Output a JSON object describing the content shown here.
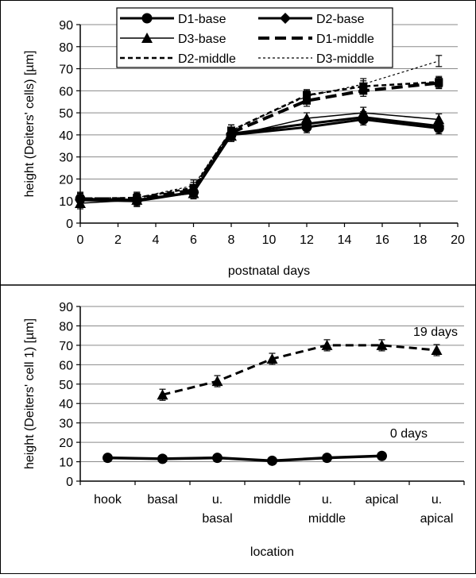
{
  "chart_data": [
    {
      "type": "line",
      "xlabel": "postnatal days",
      "ylabel": "height (Deiters' cells) [µm]",
      "xlim": [
        0,
        20
      ],
      "ylim": [
        0,
        90
      ],
      "xticks": [
        0,
        2,
        4,
        6,
        8,
        10,
        12,
        14,
        16,
        18,
        20
      ],
      "yticks": [
        0,
        10,
        20,
        30,
        40,
        50,
        60,
        70,
        80,
        90
      ],
      "grid": "horizontal",
      "legend": "top",
      "series": [
        {
          "name": "D1-base",
          "x": [
            0,
            3,
            6,
            8,
            12,
            15,
            19
          ],
          "y": [
            11,
            10.5,
            14,
            40,
            43.5,
            47,
            43
          ]
        },
        {
          "name": "D2-base",
          "x": [
            0,
            3,
            6,
            8,
            12,
            15,
            19
          ],
          "y": [
            10.5,
            10,
            14,
            40.5,
            45,
            48,
            44
          ]
        },
        {
          "name": "D3-base",
          "x": [
            0,
            3,
            6,
            8,
            12,
            15,
            19
          ],
          "y": [
            9,
            10.5,
            13.5,
            39.5,
            47.5,
            50,
            47
          ]
        },
        {
          "name": "D1-middle",
          "x": [
            0,
            3,
            6,
            8,
            12,
            15,
            19
          ],
          "y": [
            11,
            11,
            15,
            41,
            55.5,
            60,
            63.5
          ]
        },
        {
          "name": "D2-middle",
          "x": [
            0,
            3,
            6,
            8,
            12,
            15,
            19
          ],
          "y": [
            11,
            11.5,
            16,
            42,
            58,
            62,
            64
          ]
        },
        {
          "name": "D3-middle",
          "x": [
            0,
            3,
            6,
            8,
            12,
            15,
            19
          ],
          "y": [
            11.5,
            11.5,
            17,
            42,
            57.5,
            63,
            73.5
          ]
        }
      ]
    },
    {
      "type": "line",
      "xlabel": "location",
      "ylabel": "height (Deiters' cell 1) [µm]",
      "ylim": [
        0,
        90
      ],
      "yticks": [
        0,
        10,
        20,
        30,
        40,
        50,
        60,
        70,
        80,
        90
      ],
      "grid": "horizontal",
      "categories": [
        "hook",
        "basal",
        "u.\nbasal",
        "middle",
        "u.\nmiddle",
        "apical",
        "u.\napical"
      ],
      "series": [
        {
          "name": "19 days",
          "values": [
            null,
            44.5,
            51.5,
            63,
            70,
            70,
            67.5
          ]
        },
        {
          "name": "0 days",
          "values": [
            12,
            11.5,
            12,
            10.5,
            12,
            13,
            null
          ]
        }
      ]
    }
  ]
}
